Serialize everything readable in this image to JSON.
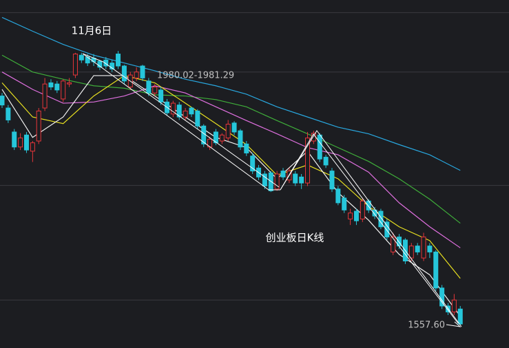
{
  "chart_data": {
    "type": "candlestick",
    "title": "创业板日K线",
    "annotations": [
      "11月6日",
      "1980.02-1981.29",
      "1557.60"
    ],
    "ylim": [
      1520,
      2100
    ],
    "grid_values": [
      2079,
      1980,
      1791,
      1600
    ],
    "up_color": "#e8363a",
    "down_color": "#26c6da",
    "open": [
      1940,
      1920,
      1880,
      1855,
      1875,
      1848,
      1865,
      1920,
      1962,
      1960,
      1935,
      1960,
      1975,
      2008,
      2005,
      2003,
      1998,
      2000,
      1995,
      2010,
      1990,
      1955,
      1970,
      1990,
      1965,
      1945,
      1950,
      1930,
      1910,
      1925,
      1905,
      1920,
      1915,
      1890,
      1855,
      1880,
      1865,
      1870,
      1895,
      1882,
      1860,
      1840,
      1820,
      1810,
      1812,
      1785,
      1815,
      1800,
      1810,
      1805,
      1795,
      1865,
      1875,
      1838,
      1815,
      1785,
      1770,
      1735,
      1748,
      1735,
      1765,
      1750,
      1748,
      1730,
      1680,
      1705,
      1700,
      1670,
      1690,
      1670,
      1690,
      1680,
      1620,
      1590,
      1580,
      1585
    ],
    "close": [
      1925,
      1900,
      1855,
      1870,
      1850,
      1862,
      1915,
      1960,
      1955,
      1950,
      1965,
      1962,
      2010,
      2000,
      1995,
      1997,
      1988,
      1990,
      1985,
      1990,
      1965,
      1975,
      1980,
      1970,
      1945,
      1955,
      1930,
      1912,
      1928,
      1905,
      1915,
      1910,
      1890,
      1860,
      1868,
      1862,
      1875,
      1893,
      1880,
      1855,
      1845,
      1815,
      1805,
      1790,
      1782,
      1810,
      1805,
      1815,
      1795,
      1795,
      1870,
      1878,
      1835,
      1825,
      1785,
      1762,
      1750,
      1745,
      1732,
      1765,
      1750,
      1740,
      1722,
      1705,
      1705,
      1690,
      1665,
      1690,
      1680,
      1705,
      1680,
      1620,
      1590,
      1580,
      1600,
      1560
    ],
    "high": [
      1945,
      1925,
      1885,
      1878,
      1880,
      1865,
      1920,
      1970,
      1968,
      1965,
      1968,
      1970,
      2012,
      2012,
      2010,
      2010,
      2000,
      2005,
      2000,
      2015,
      1992,
      1980,
      1988,
      1992,
      1970,
      1960,
      1955,
      1935,
      1932,
      1930,
      1920,
      1922,
      1918,
      1893,
      1872,
      1885,
      1878,
      1900,
      1898,
      1885,
      1865,
      1845,
      1825,
      1815,
      1815,
      1815,
      1820,
      1820,
      1815,
      1810,
      1880,
      1882,
      1878,
      1842,
      1820,
      1790,
      1775,
      1752,
      1752,
      1770,
      1768,
      1755,
      1752,
      1735,
      1712,
      1710,
      1703,
      1695,
      1695,
      1712,
      1695,
      1683,
      1625,
      1595,
      1610,
      1590
    ],
    "low": [
      1920,
      1895,
      1850,
      1850,
      1845,
      1830,
      1860,
      1915,
      1950,
      1945,
      1930,
      1955,
      1970,
      1995,
      1990,
      1990,
      1983,
      1985,
      1980,
      1985,
      1960,
      1950,
      1965,
      1965,
      1940,
      1940,
      1925,
      1908,
      1905,
      1900,
      1900,
      1905,
      1885,
      1855,
      1850,
      1858,
      1860,
      1865,
      1875,
      1850,
      1840,
      1810,
      1800,
      1785,
      1780,
      1782,
      1800,
      1795,
      1790,
      1785,
      1790,
      1860,
      1830,
      1820,
      1780,
      1758,
      1745,
      1725,
      1725,
      1730,
      1745,
      1735,
      1718,
      1700,
      1675,
      1685,
      1660,
      1665,
      1675,
      1665,
      1670,
      1615,
      1585,
      1575,
      1575,
      1557.6
    ],
    "ma_x": [
      0,
      5,
      10,
      15,
      20,
      25,
      30,
      35,
      40,
      45,
      50,
      55,
      60,
      65,
      70,
      75
    ],
    "series": [
      {
        "color": "#29a8e0",
        "values": [
          2071,
          2048,
          2026,
          2008,
          1995,
          1982,
          1968,
          1957,
          1943,
          1922,
          1905,
          1888,
          1877,
          1859,
          1842,
          1816
        ]
      },
      {
        "color": "#3fae3a",
        "values": [
          2008,
          1980,
          1968,
          1957,
          1953,
          1942,
          1940,
          1934,
          1922,
          1899,
          1877,
          1854,
          1831,
          1802,
          1768,
          1728
        ]
      },
      {
        "color": "#e070e0",
        "values": [
          1980,
          1951,
          1928,
          1930,
          1940,
          1957,
          1945,
          1922,
          1899,
          1877,
          1854,
          1842,
          1813,
          1762,
          1722,
          1687
        ]
      },
      {
        "color": "#e8e020",
        "values": [
          1962,
          1905,
          1894,
          1940,
          1974,
          1962,
          1928,
          1894,
          1859,
          1808,
          1825,
          1802,
          1756,
          1722,
          1699,
          1636
        ]
      },
      {
        "color": "#f2f2f2",
        "values": [
          1951,
          1871,
          1905,
          1974,
          1974,
          1940,
          1905,
          1871,
          1854,
          1802,
          1848,
          1779,
          1733,
          1676,
          1642,
          1573
        ]
      }
    ]
  }
}
